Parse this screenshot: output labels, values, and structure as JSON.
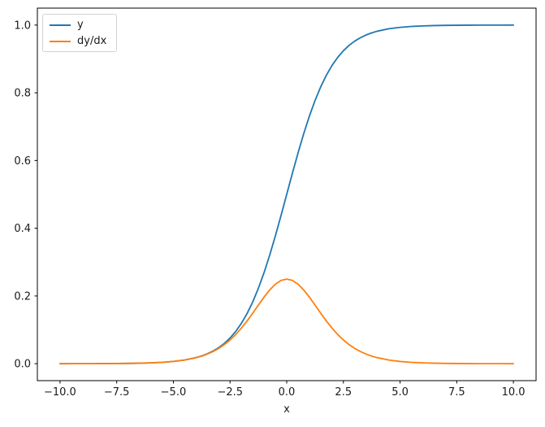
{
  "chart_data": {
    "type": "line",
    "title": "",
    "xlabel": "x",
    "ylabel": "",
    "xlim": [
      -11,
      11
    ],
    "ylim": [
      -0.05,
      1.05
    ],
    "xticks": [
      -10.0,
      -7.5,
      -5.0,
      -2.5,
      0.0,
      2.5,
      5.0,
      7.5,
      10.0
    ],
    "yticks": [
      0.0,
      0.2,
      0.4,
      0.6,
      0.8,
      1.0
    ],
    "grid": false,
    "legend_position": "upper left",
    "axis_color": "#000000",
    "text_color": "#1a1a1a",
    "background": "#ffffff",
    "x": [
      -10,
      -9.5,
      -9,
      -8.5,
      -8,
      -7.5,
      -7,
      -6.5,
      -6,
      -5.5,
      -5,
      -4.5,
      -4,
      -3.75,
      -3.5,
      -3.25,
      -3,
      -2.75,
      -2.5,
      -2.25,
      -2,
      -1.75,
      -1.5,
      -1.25,
      -1,
      -0.75,
      -0.5,
      -0.25,
      0,
      0.25,
      0.5,
      0.75,
      1,
      1.25,
      1.5,
      1.75,
      2,
      2.25,
      2.5,
      2.75,
      3,
      3.25,
      3.5,
      3.75,
      4,
      4.5,
      5,
      5.5,
      6,
      6.5,
      7,
      7.5,
      8,
      8.5,
      9,
      9.5,
      10
    ],
    "series": [
      {
        "name": "y",
        "color": "#1f77b4",
        "values": [
          0.0,
          0.0001,
          0.0001,
          0.0002,
          0.0003,
          0.0006,
          0.0009,
          0.0015,
          0.0025,
          0.0041,
          0.0067,
          0.011,
          0.018,
          0.023,
          0.0293,
          0.0374,
          0.0474,
          0.0601,
          0.0759,
          0.0953,
          0.1192,
          0.148,
          0.1824,
          0.2227,
          0.2689,
          0.3208,
          0.3775,
          0.4378,
          0.5,
          0.5622,
          0.6225,
          0.6792,
          0.7311,
          0.7773,
          0.8176,
          0.852,
          0.8808,
          0.9047,
          0.9241,
          0.9399,
          0.9526,
          0.9626,
          0.9707,
          0.977,
          0.982,
          0.989,
          0.9933,
          0.9959,
          0.9975,
          0.9985,
          0.9991,
          0.9994,
          0.9997,
          0.9998,
          0.9999,
          0.9999,
          1.0
        ]
      },
      {
        "name": "dy/dx",
        "color": "#ff7f0e",
        "values": [
          0.0,
          0.0001,
          0.0001,
          0.0002,
          0.0003,
          0.0006,
          0.0009,
          0.0015,
          0.0025,
          0.0041,
          0.0066,
          0.0109,
          0.0177,
          0.0224,
          0.0285,
          0.036,
          0.0452,
          0.0565,
          0.0701,
          0.0862,
          0.105,
          0.1261,
          0.1491,
          0.1731,
          0.1966,
          0.2179,
          0.235,
          0.2461,
          0.25,
          0.2461,
          0.235,
          0.2179,
          0.1966,
          0.1731,
          0.1491,
          0.1261,
          0.105,
          0.0862,
          0.0701,
          0.0565,
          0.0452,
          0.036,
          0.0285,
          0.0224,
          0.0177,
          0.0109,
          0.0066,
          0.0041,
          0.0025,
          0.0015,
          0.0009,
          0.0006,
          0.0003,
          0.0002,
          0.0001,
          0.0001,
          0.0
        ]
      }
    ]
  }
}
